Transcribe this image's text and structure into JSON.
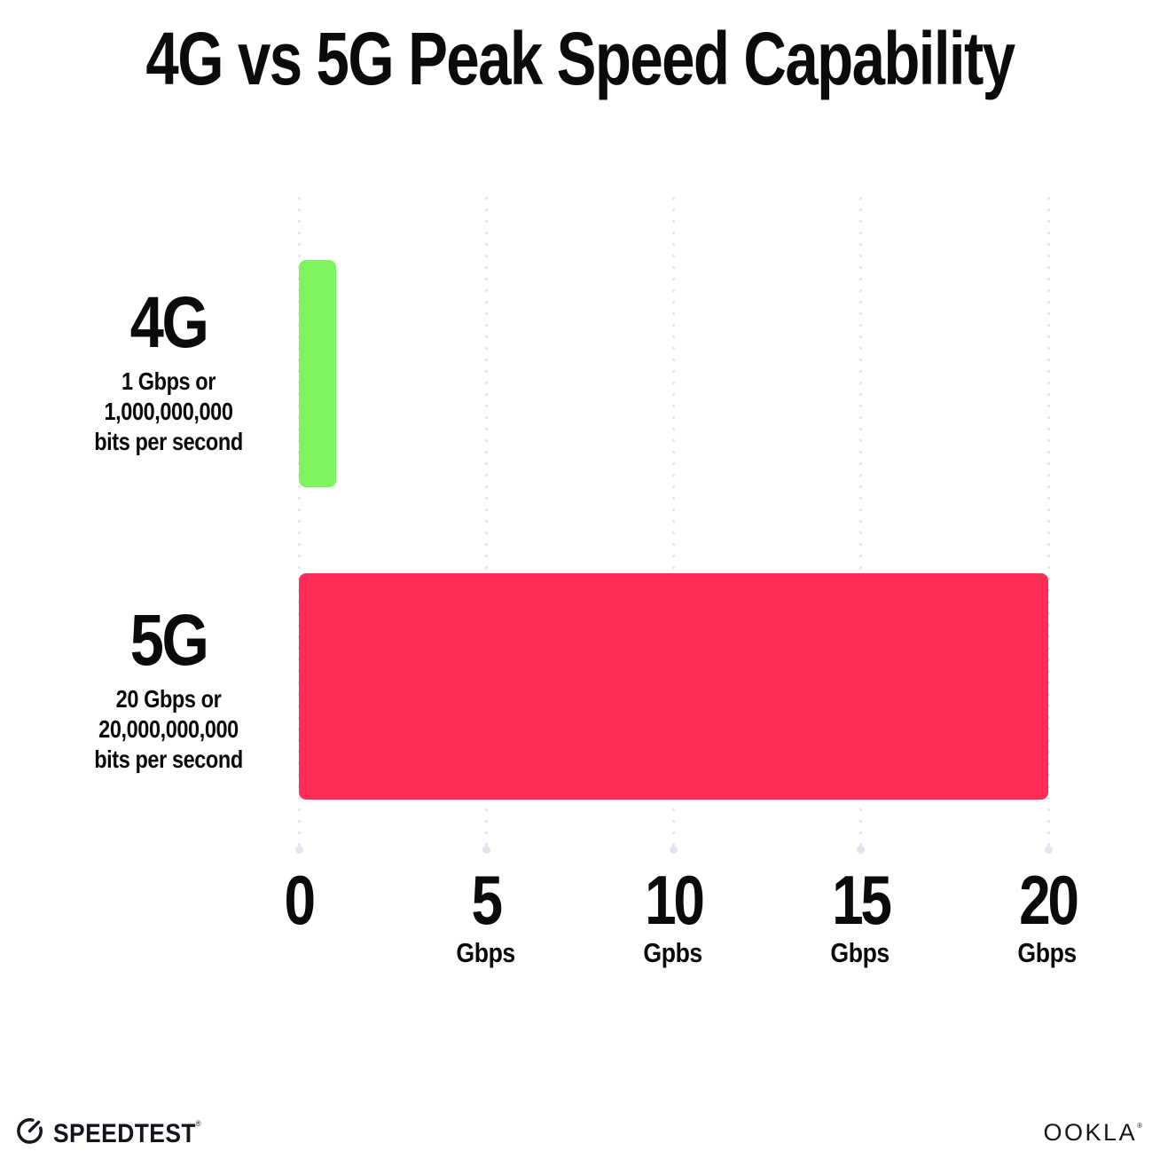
{
  "title": "4G vs 5G Peak Speed Capability",
  "colors": {
    "background": "#ffffff",
    "text": "#0b0b0b",
    "grid": "#e2e4ee",
    "bar_4g": "#7df45e",
    "bar_5g": "#ff2e56"
  },
  "chart_data": {
    "type": "bar",
    "orientation": "horizontal",
    "title": "4G vs 5G Peak Speed Capability",
    "xlabel": "Gbps",
    "xlim": [
      0,
      20
    ],
    "grid": "dotted vertical gridlines at each tick",
    "legend": "none",
    "categories": [
      "4G",
      "5G"
    ],
    "values": [
      1,
      20
    ],
    "bars": [
      {
        "label": "4G",
        "value": 1,
        "color": "#7df45e",
        "sublabel_lines": [
          "1 Gbps or",
          "1,000,000,000",
          "bits per second"
        ]
      },
      {
        "label": "5G",
        "value": 20,
        "color": "#ff2e56",
        "sublabel_lines": [
          "20 Gbps or",
          "20,000,000,000",
          "bits per second"
        ]
      }
    ],
    "x_ticks": [
      {
        "value": "0",
        "unit": ""
      },
      {
        "value": "5",
        "unit": "Gbps"
      },
      {
        "value": "10",
        "unit": "Gpbs"
      },
      {
        "value": "15",
        "unit": "Gbps"
      },
      {
        "value": "20",
        "unit": "Gbps"
      }
    ]
  },
  "footer": {
    "speedtest": {
      "label": "SPEEDTEST",
      "mark": "®"
    },
    "ookla": {
      "label": "OOKLA",
      "mark": "®"
    }
  }
}
